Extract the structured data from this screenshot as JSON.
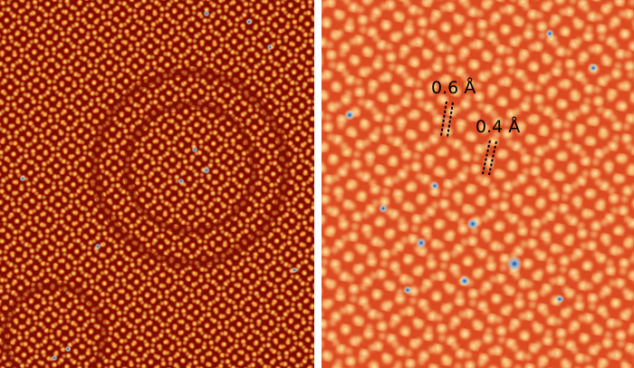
{
  "annotations": [
    {
      "label": "0.6 Å"
    },
    {
      "label": "0.4 Å"
    }
  ]
}
